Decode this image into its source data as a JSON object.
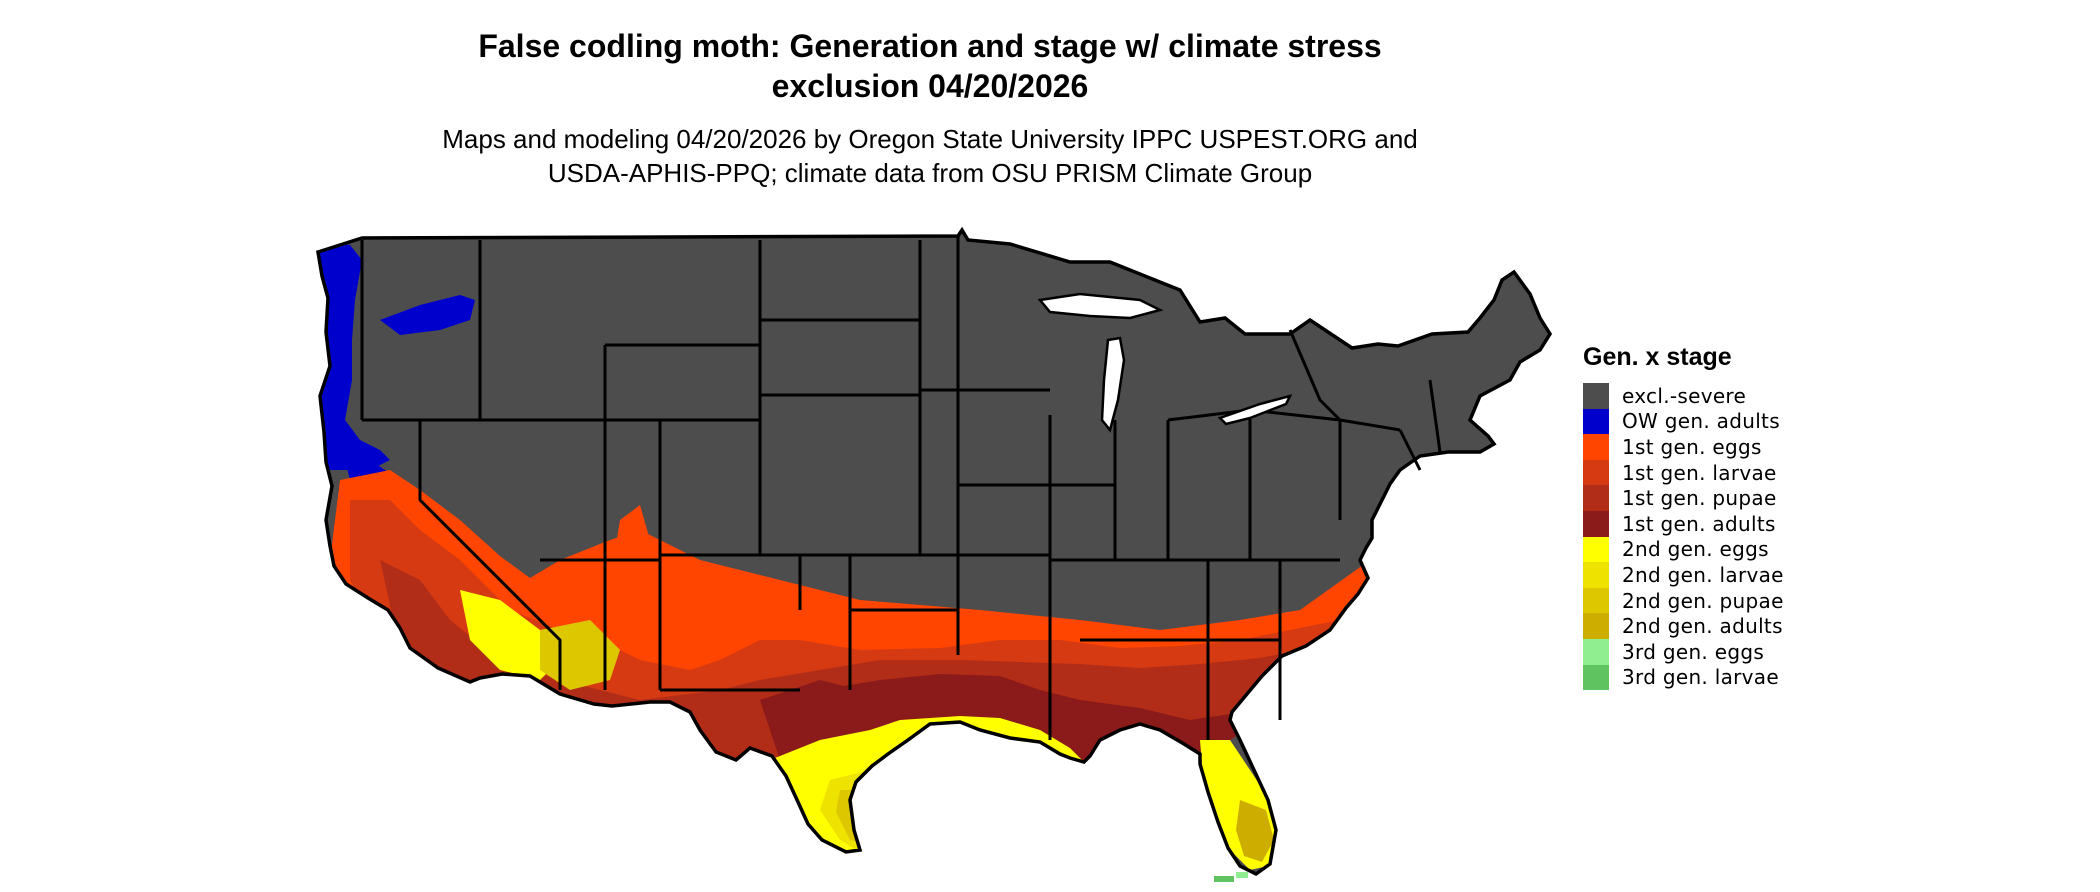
{
  "title": {
    "line1": "False codling moth: Generation and stage w/ climate stress",
    "line2": "exclusion 04/20/2026"
  },
  "subtitle": {
    "line1": "Maps and modeling 04/20/2026 by Oregon State University IPPC USPEST.ORG and",
    "line2": "USDA-APHIS-PPQ; climate data from OSU PRISM Climate Group"
  },
  "legend": {
    "title": "Gen. x stage",
    "items": [
      {
        "label": "excl.-severe",
        "color": "#4d4d4d"
      },
      {
        "label": "OW gen. adults",
        "color": "#0000cd"
      },
      {
        "label": "1st gen. eggs",
        "color": "#ff4500"
      },
      {
        "label": "1st gen. larvae",
        "color": "#d63a12"
      },
      {
        "label": "1st gen. pupae",
        "color": "#b22d17"
      },
      {
        "label": "1st gen. adults",
        "color": "#8b1a1a"
      },
      {
        "label": "2nd gen. eggs",
        "color": "#ffff00"
      },
      {
        "label": "2nd gen. larvae",
        "color": "#eee200"
      },
      {
        "label": "2nd gen. pupae",
        "color": "#ddc700"
      },
      {
        "label": "2nd gen. adults",
        "color": "#cdad00"
      },
      {
        "label": "3rd gen. eggs",
        "color": "#90ee90"
      },
      {
        "label": "3rd gen. larvae",
        "color": "#5fc35f"
      }
    ]
  }
}
